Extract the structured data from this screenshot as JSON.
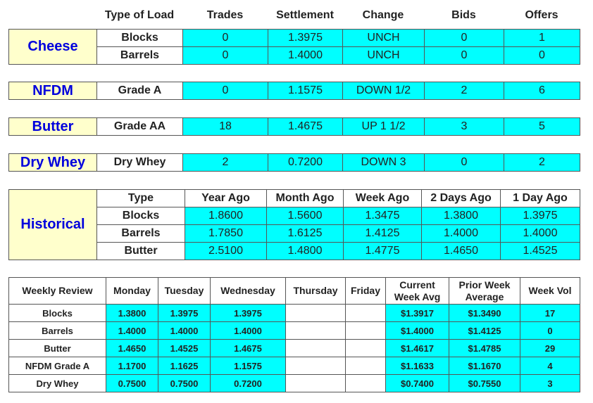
{
  "market": {
    "headers": [
      "Type of Load",
      "Trades",
      "Settlement",
      "Change",
      "Bids",
      "Offers"
    ],
    "groups": [
      {
        "name": "Cheese",
        "rows": [
          [
            "Blocks",
            "0",
            "1.3975",
            "UNCH",
            "0",
            "1"
          ],
          [
            "Barrels",
            "0",
            "1.4000",
            "UNCH",
            "0",
            "0"
          ]
        ]
      },
      {
        "name": "NFDM",
        "rows": [
          [
            "Grade A",
            "0",
            "1.1575",
            "DOWN 1/2",
            "2",
            "6"
          ]
        ]
      },
      {
        "name": "Butter",
        "rows": [
          [
            "Grade AA",
            "18",
            "1.4675",
            "UP 1 1/2",
            "3",
            "5"
          ]
        ]
      },
      {
        "name": "Dry Whey",
        "rows": [
          [
            "Dry Whey",
            "2",
            "0.7200",
            "DOWN 3",
            "0",
            "2"
          ]
        ]
      }
    ]
  },
  "historical": {
    "name": "Historical",
    "headers": [
      "Type",
      "Year Ago",
      "Month Ago",
      "Week Ago",
      "2 Days Ago",
      "1 Day Ago"
    ],
    "rows": [
      [
        "Blocks",
        "1.8600",
        "1.5600",
        "1.3475",
        "1.3800",
        "1.3975"
      ],
      [
        "Barrels",
        "1.7850",
        "1.6125",
        "1.4125",
        "1.4000",
        "1.4000"
      ],
      [
        "Butter",
        "2.5100",
        "1.4800",
        "1.4775",
        "1.4650",
        "1.4525"
      ]
    ]
  },
  "weekly": {
    "headers": [
      "Weekly Review",
      "Monday",
      "Tuesday",
      "Wednesday",
      "Thursday",
      "Friday",
      "Current Week Avg",
      "Prior Week Average",
      "Week Vol"
    ],
    "rows": [
      {
        "label": "Blocks",
        "days": [
          "1.3800",
          "1.3975",
          "1.3975"
        ],
        "current": "$1.3917",
        "prior": "$1.3490",
        "vol": "17"
      },
      {
        "label": "Barrels",
        "days": [
          "1.4000",
          "1.4000",
          "1.4000"
        ],
        "current": "$1.4000",
        "prior": "$1.4125",
        "vol": "0"
      },
      {
        "label": "Butter",
        "days": [
          "1.4650",
          "1.4525",
          "1.4675"
        ],
        "current": "$1.4617",
        "prior": "$1.4785",
        "vol": "29"
      },
      {
        "label": "NFDM Grade A",
        "days": [
          "1.1700",
          "1.1625",
          "1.1575"
        ],
        "current": "$1.1633",
        "prior": "$1.1670",
        "vol": "4"
      },
      {
        "label": "Dry Whey",
        "days": [
          "0.7500",
          "0.7500",
          "0.7200"
        ],
        "current": "$0.7400",
        "prior": "$0.7550",
        "vol": "3"
      }
    ]
  }
}
